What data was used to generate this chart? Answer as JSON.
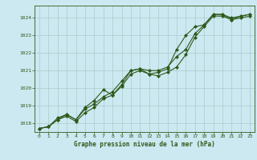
{
  "title": "Graphe pression niveau de la mer (hPa)",
  "background_color": "#cce8f0",
  "grid_color": "#aacccc",
  "line_color": "#2d5a1b",
  "ylim": [
    1017.5,
    1024.7
  ],
  "yticks": [
    1018,
    1019,
    1020,
    1021,
    1022,
    1023,
    1024
  ],
  "xlim": [
    -0.5,
    23.5
  ],
  "xticks": [
    0,
    1,
    2,
    3,
    4,
    5,
    6,
    7,
    8,
    9,
    10,
    11,
    12,
    13,
    14,
    15,
    16,
    17,
    18,
    19,
    20,
    21,
    22,
    23
  ],
  "series1": [
    1017.7,
    1017.8,
    1018.2,
    1018.4,
    1018.1,
    1018.6,
    1018.9,
    1019.4,
    1019.6,
    1020.1,
    1020.8,
    1021.0,
    1020.8,
    1020.7,
    1020.9,
    1021.2,
    1021.9,
    1022.9,
    1023.5,
    1024.1,
    1024.1,
    1023.9,
    1024.0,
    1024.1
  ],
  "series2": [
    1017.7,
    1017.8,
    1018.2,
    1018.5,
    1018.2,
    1018.8,
    1019.1,
    1019.5,
    1019.8,
    1020.4,
    1021.0,
    1021.1,
    1020.8,
    1020.9,
    1021.1,
    1022.2,
    1023.0,
    1023.5,
    1023.6,
    1024.2,
    1024.2,
    1024.0,
    1024.1,
    1024.2
  ],
  "series3": [
    1017.7,
    1017.8,
    1018.3,
    1018.5,
    1018.2,
    1018.9,
    1019.3,
    1019.9,
    1019.6,
    1020.2,
    1021.0,
    1021.1,
    1021.0,
    1021.0,
    1021.2,
    1021.8,
    1022.2,
    1023.1,
    1023.6,
    1024.2,
    1024.2,
    1023.9,
    1024.1,
    1024.2
  ]
}
